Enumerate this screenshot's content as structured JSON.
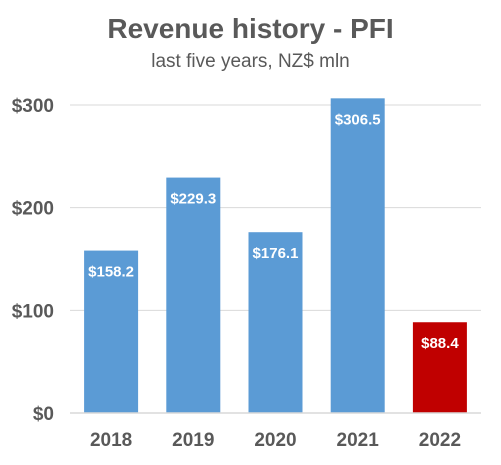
{
  "chart_data": {
    "type": "bar",
    "title": "Revenue history - PFI",
    "subtitle": "last five years, NZ$ mln",
    "xlabel": "",
    "ylabel": "",
    "categories": [
      "2018",
      "2019",
      "2020",
      "2021",
      "2022"
    ],
    "series": [
      {
        "values": [
          158.2,
          229.3,
          176.1,
          306.5,
          88.4
        ],
        "data_labels": [
          "$158.2",
          "$229.3",
          "$176.1",
          "$306.5",
          "$88.4"
        ],
        "colors": [
          "#5B9BD5",
          "#5B9BD5",
          "#5B9BD5",
          "#5B9BD5",
          "#C00000"
        ]
      }
    ],
    "ylim": [
      0,
      300
    ],
    "yticks": [
      0,
      100,
      200,
      300
    ],
    "ytick_labels": [
      "$0",
      "$100",
      "$200",
      "$300"
    ],
    "grid": true,
    "legend": "none"
  },
  "colors": {
    "bar": "#5B9BD5",
    "highlight_bar": "#C00000",
    "gridline": "#D9D9D9",
    "axis_text": "#595959",
    "title_text": "#595959",
    "data_label_text": "#FFFFFF"
  }
}
